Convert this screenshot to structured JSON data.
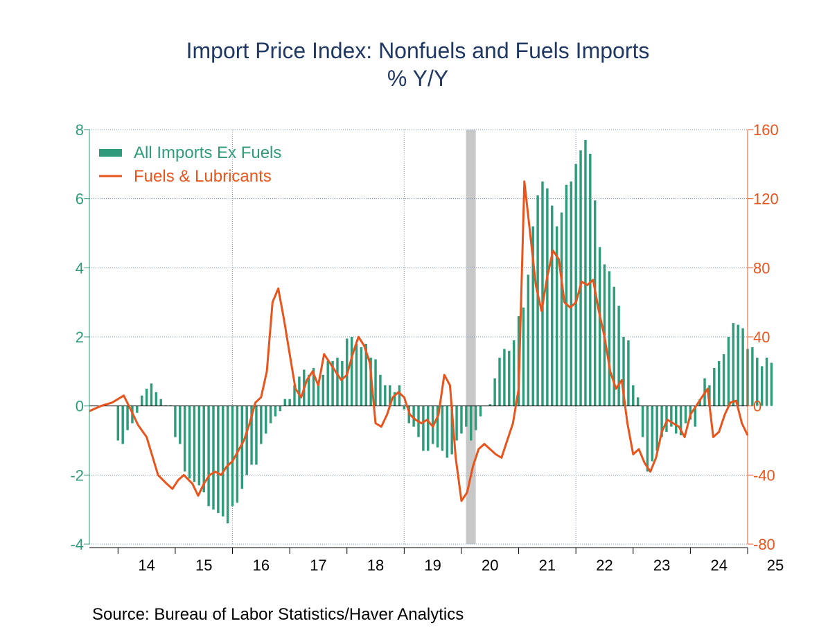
{
  "chart_data": {
    "type": "bar",
    "title": "Import Price Index: Nonfuels and Fuels Imports",
    "subtitle": "% Y/Y",
    "source": "Source:  Bureau of Labor Statistics/Haver Analytics",
    "x_labels": [
      "14",
      "15",
      "16",
      "17",
      "18",
      "19",
      "20",
      "21",
      "22",
      "23",
      "24",
      "25"
    ],
    "x_range_years": [
      2013.5,
      2025.0
    ],
    "left_axis": {
      "ylim": [
        -4,
        8
      ],
      "ticks": [
        8,
        6,
        4,
        2,
        0,
        -2,
        -4
      ],
      "color": "#2e9c7a"
    },
    "right_axis": {
      "ylim": [
        -80,
        160
      ],
      "ticks": [
        160,
        120,
        80,
        40,
        0,
        -40,
        -80
      ],
      "color": "#e8541c"
    },
    "grid": true,
    "legend_position": "top-left",
    "recession_shading": [
      [
        2020.08,
        2020.25
      ]
    ],
    "series": [
      {
        "name": "All Imports Ex Fuels",
        "type": "bar",
        "axis": "left",
        "color": "#2e9c7a",
        "start": 2014.0,
        "step_months": 1,
        "values": [
          -1.0,
          -1.1,
          -0.7,
          -0.5,
          -0.2,
          0.3,
          0.5,
          0.65,
          0.4,
          0.2,
          0.02,
          0.02,
          -0.9,
          -1.1,
          -1.9,
          -2.1,
          -2.2,
          -2.3,
          -2.5,
          -2.9,
          -3.0,
          -3.1,
          -3.2,
          -3.4,
          -2.9,
          -2.8,
          -2.4,
          -2.0,
          -1.7,
          -1.7,
          -1.1,
          -0.8,
          -0.5,
          -0.3,
          -0.15,
          0.2,
          0.2,
          0.6,
          0.85,
          1.05,
          0.9,
          1.1,
          0.7,
          0.9,
          1.3,
          1.3,
          1.4,
          1.3,
          1.95,
          2.0,
          1.8,
          1.7,
          1.8,
          1.4,
          1.35,
          0.9,
          0.6,
          0.6,
          0.4,
          0.6,
          -0.1,
          -0.5,
          -0.6,
          -0.9,
          -1.3,
          -1.3,
          -1.1,
          -1.2,
          -1.3,
          -1.5,
          -1.4,
          -1.0,
          -0.8,
          -0.6,
          -1.0,
          -0.7,
          -0.3,
          0.0,
          0.05,
          0.8,
          1.4,
          1.65,
          1.6,
          1.9,
          2.6,
          2.85,
          3.8,
          5.2,
          6.1,
          6.5,
          6.3,
          5.8,
          5.2,
          5.6,
          6.4,
          6.5,
          7.0,
          7.4,
          7.7,
          7.3,
          5.95,
          4.6,
          4.1,
          3.9,
          3.45,
          2.9,
          2.0,
          1.9,
          0.6,
          0.25,
          -0.9,
          -1.9,
          -1.6,
          -1.3,
          -0.9,
          -0.75,
          -0.6,
          -0.8,
          -0.85,
          -0.5,
          -0.4,
          -0.6,
          0.2,
          0.8,
          0.6,
          1.1,
          1.3,
          1.5,
          2.0,
          2.4,
          2.35,
          2.25,
          1.65,
          1.7,
          1.4,
          1.15,
          1.4,
          1.25
        ]
      },
      {
        "name": "Fuels & Lubricants",
        "type": "line",
        "axis": "right",
        "color": "#e8541c",
        "x": [
          2013.5,
          2013.7,
          2013.9,
          2014.1,
          2014.25,
          2014.35,
          2014.5,
          2014.7,
          2014.85,
          2014.95,
          2015.05,
          2015.15,
          2015.3,
          2015.4,
          2015.5,
          2015.6,
          2015.7,
          2015.8,
          2015.9,
          2016.0,
          2016.1,
          2016.2,
          2016.3,
          2016.4,
          2016.5,
          2016.6,
          2016.7,
          2016.8,
          2016.9,
          2017.0,
          2017.1,
          2017.2,
          2017.3,
          2017.4,
          2017.5,
          2017.6,
          2017.7,
          2017.8,
          2017.9,
          2018.0,
          2018.1,
          2018.2,
          2018.3,
          2018.4,
          2018.5,
          2018.6,
          2018.7,
          2018.8,
          2018.9,
          2019.0,
          2019.1,
          2019.2,
          2019.3,
          2019.4,
          2019.5,
          2019.6,
          2019.7,
          2019.8,
          2019.9,
          2020.0,
          2020.1,
          2020.2,
          2020.3,
          2020.4,
          2020.5,
          2020.6,
          2020.7,
          2020.8,
          2020.9,
          2021.0,
          2021.1,
          2021.2,
          2021.3,
          2021.4,
          2021.5,
          2021.6,
          2021.7,
          2021.8,
          2021.9,
          2022.0,
          2022.1,
          2022.2,
          2022.3,
          2022.4,
          2022.5,
          2022.6,
          2022.7,
          2022.8,
          2022.9,
          2023.0,
          2023.1,
          2023.2,
          2023.3,
          2023.4,
          2023.5,
          2023.6,
          2023.7,
          2023.8,
          2023.9,
          2024.0,
          2024.1,
          2024.2,
          2024.3,
          2024.4,
          2024.5,
          2024.6,
          2024.7,
          2024.8,
          2024.9,
          2025.0
        ],
        "y": [
          -3,
          0,
          2,
          6,
          -4,
          -11,
          -18,
          -40,
          -45,
          -48,
          -43,
          -40,
          -45,
          -52,
          -45,
          -40,
          -38,
          -40,
          -35,
          -32,
          -26,
          -20,
          -10,
          2,
          5,
          20,
          60,
          68,
          50,
          30,
          10,
          5,
          15,
          20,
          12,
          30,
          25,
          20,
          15,
          18,
          30,
          40,
          35,
          25,
          -10,
          -12,
          -5,
          5,
          8,
          5,
          -5,
          -8,
          -10,
          -8,
          -12,
          -5,
          18,
          12,
          -30,
          -55,
          -50,
          -35,
          -25,
          -22,
          -25,
          -28,
          -30,
          -20,
          -10,
          10,
          130,
          100,
          70,
          55,
          75,
          90,
          85,
          60,
          57,
          60,
          72,
          70,
          73,
          55,
          40,
          20,
          10,
          15,
          -10,
          -28,
          -25,
          -33,
          -38,
          -30,
          -15,
          -8,
          -10,
          -12,
          -18,
          -5,
          0,
          5,
          10,
          -18,
          -15,
          -5,
          2,
          3,
          -10,
          -17
        ]
      }
    ]
  },
  "legend": {
    "bars_label": "All Imports Ex Fuels",
    "line_label": "Fuels & Lubricants"
  }
}
